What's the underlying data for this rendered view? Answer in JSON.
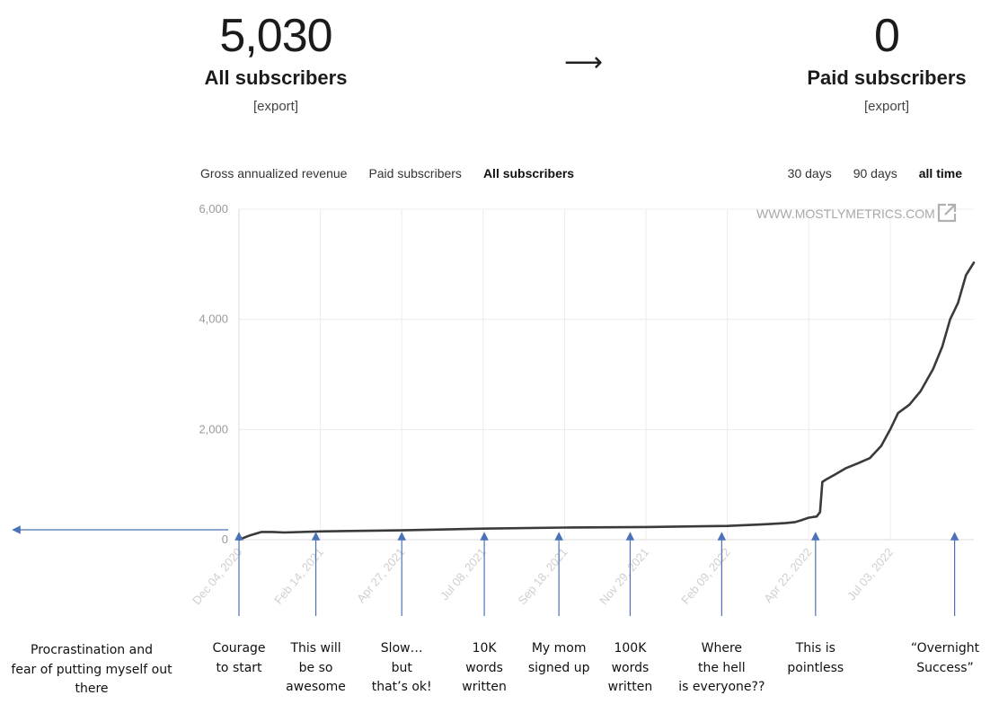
{
  "stats": {
    "all": {
      "value": "5,030",
      "label": "All subscribers",
      "export": "[export]"
    },
    "arrow": "⟶",
    "paid": {
      "value": "0",
      "label": "Paid subscribers",
      "export": "[export]"
    }
  },
  "metric_tabs": [
    "Gross annualized revenue",
    "Paid subscribers",
    "All subscribers"
  ],
  "metric_tabs_active": 2,
  "range_tabs": [
    "30 days",
    "90 days",
    "all time"
  ],
  "range_tabs_active": 2,
  "watermark": "WWW.MOSTLYMETRICS.COM",
  "colors": {
    "line": "#3a3a3a",
    "grid": "#ececec",
    "annotation_arrow": "#4a72b8"
  },
  "chart_data": {
    "type": "line",
    "title": "",
    "xlabel": "",
    "ylabel": "",
    "ylim": [
      0,
      6000
    ],
    "y_ticks": [
      "0",
      "2,000",
      "4,000",
      "6,000"
    ],
    "x_ticks": [
      "Dec 04, 2020",
      "Feb 14, 2021",
      "Apr 27, 2021",
      "Jul 08, 2021",
      "Sep 18, 2021",
      "Nov 29, 2021",
      "Feb 09, 2022",
      "Apr 22, 2022",
      "Jul 03, 2022"
    ],
    "grid": true,
    "series": [
      {
        "x": [
          "2020-12-04",
          "2020-12-14",
          "2020-12-24",
          "2021-01-03",
          "2021-01-13",
          "2021-02-14",
          "2021-04-27",
          "2021-07-08",
          "2021-09-18",
          "2021-11-29",
          "2022-02-09",
          "2022-03-15",
          "2022-04-01",
          "2022-04-10",
          "2022-04-15",
          "2022-04-22",
          "2022-04-29",
          "2022-05-02",
          "2022-05-04",
          "2022-05-08",
          "2022-05-15",
          "2022-05-25",
          "2022-06-05",
          "2022-06-15",
          "2022-06-25",
          "2022-07-03",
          "2022-07-10",
          "2022-07-20",
          "2022-07-30",
          "2022-08-10",
          "2022-08-18",
          "2022-08-25",
          "2022-09-01",
          "2022-09-08",
          "2022-09-15"
        ],
        "y": [
          0,
          80,
          140,
          140,
          130,
          150,
          170,
          200,
          220,
          230,
          250,
          280,
          300,
          320,
          350,
          400,
          420,
          500,
          1050,
          1100,
          1180,
          1300,
          1390,
          1480,
          1700,
          2000,
          2300,
          2450,
          2700,
          3100,
          3500,
          4000,
          4300,
          4800,
          5030
        ]
      }
    ],
    "annotations": [
      {
        "text": "Procrastination and\nfear of putting myself out\nthere",
        "at": "before-start"
      },
      {
        "text": "Courage\nto start",
        "at": "2020-12-04"
      },
      {
        "text": "This will\nbe so\nawesome",
        "at": "2021-02-10"
      },
      {
        "text": "Slow…\nbut\nthat’s ok!",
        "at": "2021-04-27"
      },
      {
        "text": "10K\nwords\nwritten",
        "at": "2021-07-09"
      },
      {
        "text": "My mom\nsigned up",
        "at": "2021-09-13"
      },
      {
        "text": "100K\nwords\nwritten",
        "at": "2021-11-15"
      },
      {
        "text": "Where\nthe hell\nis everyone??",
        "at": "2022-02-04"
      },
      {
        "text": "This is\npointless",
        "at": "2022-04-28"
      },
      {
        "text": "“Overnight\nSuccess”",
        "at": "2022-08-29"
      }
    ]
  }
}
